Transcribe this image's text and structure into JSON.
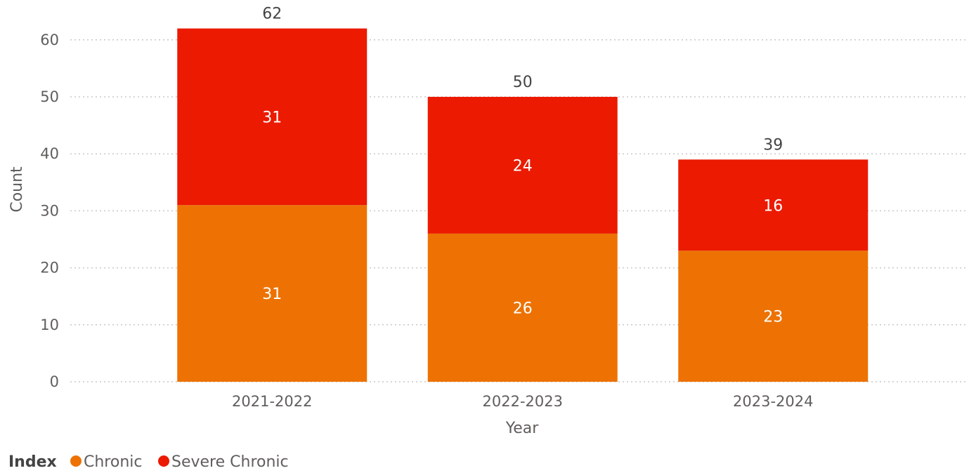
{
  "chart_data": {
    "type": "bar",
    "stacked": true,
    "categories": [
      "2021-2022",
      "2022-2023",
      "2023-2024"
    ],
    "series": [
      {
        "name": "Chronic",
        "values": [
          31,
          26,
          23
        ],
        "color": "#ED7203"
      },
      {
        "name": "Severe Chronic",
        "values": [
          31,
          24,
          16
        ],
        "color": "#EB1A00"
      }
    ],
    "totals": [
      62,
      50,
      39
    ],
    "xlabel": "Year",
    "ylabel": "Count",
    "ylim": [
      0,
      62
    ],
    "yticks": [
      0,
      10,
      20,
      30,
      40,
      50,
      60
    ],
    "grid": true,
    "legend": {
      "title": "Index",
      "position": "bottom-left"
    }
  }
}
